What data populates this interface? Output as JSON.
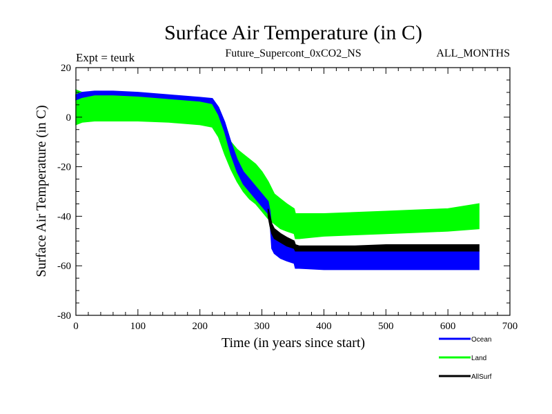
{
  "chart_data": {
    "type": "line",
    "title": "Surface Air Temperature (in C)",
    "subtitle_left": "Expt = teurk",
    "subtitle_center": "Future_Supercont_0xCO2_NS",
    "subtitle_right": "ALL_MONTHS",
    "xlabel": "Time (in years since start)",
    "ylabel": "Surface Air Temperature (in C)",
    "xlim": [
      0,
      700
    ],
    "ylim": [
      -80,
      20
    ],
    "xticks": [
      0,
      100,
      200,
      300,
      400,
      500,
      600,
      700
    ],
    "yticks": [
      -80,
      -60,
      -40,
      -20,
      0,
      20
    ],
    "grid": false,
    "legend_position": "bottom-right",
    "series": [
      {
        "name": "Land",
        "color": "#00ff00",
        "x": [
          0,
          10,
          30,
          60,
          100,
          150,
          200,
          220,
          230,
          240,
          250,
          260,
          270,
          280,
          290,
          300,
          310,
          320,
          330,
          340,
          352,
          354,
          360,
          380,
          400,
          450,
          500,
          550,
          600,
          650
        ],
        "upper": [
          11,
          10,
          9.5,
          9.5,
          9,
          8,
          7,
          6.5,
          2,
          -4,
          -10,
          -13,
          -15,
          -17,
          -19,
          -22,
          -26,
          -31,
          -33,
          -35,
          -37,
          -39,
          -39,
          -39,
          -39,
          -38.5,
          -38,
          -37.5,
          -37,
          -35
        ],
        "lower": [
          -3,
          -2,
          -1.5,
          -1.5,
          -1.5,
          -2,
          -3,
          -4,
          -8,
          -15,
          -21,
          -26,
          -30,
          -33,
          -35,
          -38,
          -41,
          -43,
          -45,
          -46,
          -47,
          -49,
          -49,
          -48.5,
          -48,
          -47.5,
          -47,
          -46.5,
          -46,
          -45
        ]
      },
      {
        "name": "Ocean",
        "color": "#0000ff",
        "x": [
          0,
          10,
          30,
          60,
          100,
          150,
          200,
          220,
          230,
          240,
          250,
          260,
          270,
          280,
          290,
          300,
          310,
          313,
          316,
          320,
          330,
          340,
          352,
          354,
          360,
          400,
          450,
          500,
          550,
          600,
          650
        ],
        "upper": [
          9,
          10,
          10.5,
          10.5,
          10,
          9,
          8,
          7.5,
          4,
          -2,
          -10,
          -17,
          -22,
          -25,
          -28,
          -31,
          -34,
          -38,
          -45,
          -47,
          -50,
          -52,
          -53,
          -54,
          -54,
          -54,
          -54,
          -54,
          -54,
          -54,
          -54
        ],
        "lower": [
          7,
          8,
          9,
          9,
          8.5,
          7.5,
          6.5,
          5.5,
          1,
          -6,
          -15,
          -22,
          -27,
          -30,
          -33,
          -36,
          -39,
          -42,
          -53,
          -55,
          -57,
          -58,
          -59,
          -61,
          -61,
          -61.5,
          -61.5,
          -61.5,
          -61.5,
          -61.5,
          -61.5
        ]
      },
      {
        "name": "AllSurf",
        "color": "#000000",
        "x": [
          310,
          313,
          316,
          320,
          330,
          340,
          352,
          354,
          360,
          400,
          450,
          500,
          550,
          600,
          650
        ],
        "upper": [
          -37,
          -40,
          -43,
          -45,
          -47,
          -48.5,
          -50,
          -51.5,
          -52,
          -52,
          -52,
          -51.5,
          -51.5,
          -51.5,
          -51.5
        ],
        "lower": [
          -40,
          -44,
          -47,
          -49,
          -50.5,
          -52,
          -53,
          -54,
          -54,
          -54,
          -54,
          -54,
          -54,
          -54,
          -54
        ]
      }
    ],
    "draw_order": [
      "Land",
      "Ocean",
      "AllSurf"
    ]
  }
}
